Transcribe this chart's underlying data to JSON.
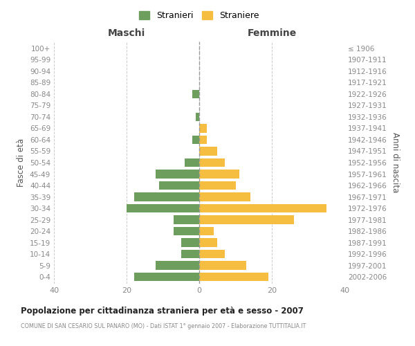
{
  "age_groups": [
    "0-4",
    "5-9",
    "10-14",
    "15-19",
    "20-24",
    "25-29",
    "30-34",
    "35-39",
    "40-44",
    "45-49",
    "50-54",
    "55-59",
    "60-64",
    "65-69",
    "70-74",
    "75-79",
    "80-84",
    "85-89",
    "90-94",
    "95-99",
    "100+"
  ],
  "birth_years": [
    "2002-2006",
    "1997-2001",
    "1992-1996",
    "1987-1991",
    "1982-1986",
    "1977-1981",
    "1972-1976",
    "1967-1971",
    "1962-1966",
    "1957-1961",
    "1952-1956",
    "1947-1951",
    "1942-1946",
    "1937-1941",
    "1932-1936",
    "1927-1931",
    "1922-1926",
    "1917-1921",
    "1912-1916",
    "1907-1911",
    "≤ 1906"
  ],
  "males": [
    18,
    12,
    5,
    5,
    7,
    7,
    20,
    18,
    11,
    12,
    4,
    0,
    2,
    0,
    1,
    0,
    2,
    0,
    0,
    0,
    0
  ],
  "females": [
    19,
    13,
    7,
    5,
    4,
    26,
    35,
    14,
    10,
    11,
    7,
    5,
    2,
    2,
    0,
    0,
    0,
    0,
    0,
    0,
    0
  ],
  "male_color": "#6d9e5e",
  "female_color": "#f5be41",
  "male_label": "Stranieri",
  "female_label": "Straniere",
  "title": "Popolazione per cittadinanza straniera per età e sesso - 2007",
  "subtitle": "COMUNE DI SAN CESARIO SUL PANARO (MO) - Dati ISTAT 1° gennaio 2007 - Elaborazione TUTTITALIA.IT",
  "xlabel_left": "Maschi",
  "xlabel_right": "Femmine",
  "ylabel_left": "Fasce di età",
  "ylabel_right": "Anni di nascita",
  "xlim": 40,
  "background_color": "#ffffff",
  "grid_color": "#cccccc",
  "tick_color": "#888888",
  "bar_height": 0.75
}
